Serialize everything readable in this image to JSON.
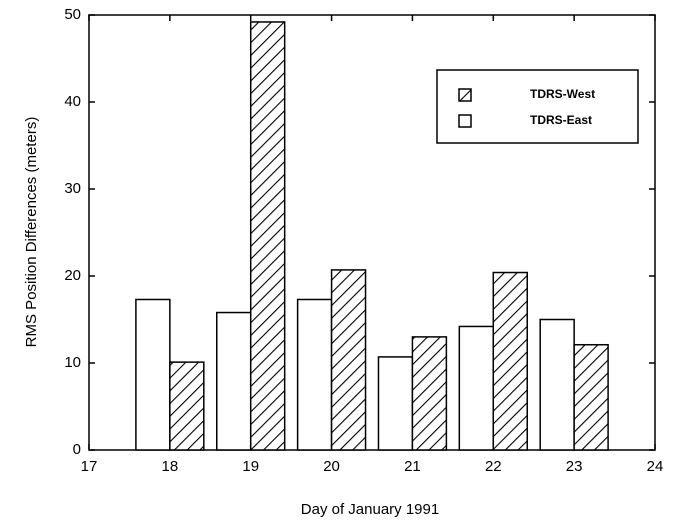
{
  "chart_data": {
    "type": "bar",
    "xlabel": "Day of January 1991",
    "ylabel": "RMS Position Differences (meters)",
    "x": [
      18,
      19,
      20,
      21,
      22,
      23
    ],
    "series": [
      {
        "name": "TDRS-East",
        "color": "#ffffff",
        "values": [
          17.3,
          15.8,
          17.3,
          10.7,
          14.2,
          15.0
        ]
      },
      {
        "name": "TDRS-West",
        "color": "#ffffff",
        "hatch": true,
        "values": [
          10.1,
          49.2,
          20.7,
          13.0,
          20.4,
          12.1
        ]
      }
    ],
    "xlim": [
      17,
      24
    ],
    "xticks": [
      17,
      18,
      19,
      20,
      21,
      22,
      23,
      24
    ],
    "ylim": [
      0,
      50
    ],
    "yticks": [
      0,
      10,
      20,
      30,
      40,
      50
    ],
    "legend": "upper right"
  }
}
